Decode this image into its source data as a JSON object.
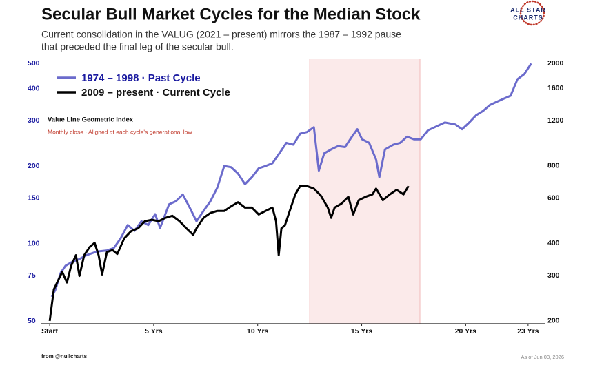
{
  "chart_data": {
    "type": "line",
    "title": "Secular Bull Market Cycles for the Median Stock",
    "subtitle": [
      "Current consolidation in the VALUG (2021 – present) mirrors the 1987 – 1992 pause",
      "that preceded the final leg of the secular bull."
    ],
    "annotation": "Value Line Geometric Index",
    "annotation_sub": "Monthly close  ·  Aligned at each cycle's generational low",
    "logo": [
      "ALL STAR",
      "CHARTS"
    ],
    "source": "from  @nullcharts",
    "date_note": "As of Jun 03, 2026",
    "log_scale": true,
    "legend": "upper left",
    "highlight_range": [
      12.5,
      17.8
    ],
    "highlight_color": "#fbeaea",
    "xlim": [
      -0.4,
      23.8
    ],
    "xticks": [
      {
        "value": 0,
        "label": "Start"
      },
      {
        "value": 5,
        "label": "5 Yrs"
      },
      {
        "value": 10,
        "label": "10 Yrs"
      },
      {
        "value": 15,
        "label": "15 Yrs"
      },
      {
        "value": 20,
        "label": "20 Yrs"
      },
      {
        "value": 23,
        "label": "23 Yrs"
      }
    ],
    "ylim": [
      48.8,
      523
    ],
    "yticks": [
      50,
      75,
      100,
      150,
      200,
      300,
      400,
      500
    ],
    "y2lim": [
      195,
      2090
    ],
    "y2ticks": [
      200,
      300,
      400,
      600,
      800,
      1200,
      1600,
      2000
    ],
    "series": [
      {
        "name": "1974 – 1998  ·  Past Cycle",
        "color": "#6b6bcc",
        "axis": "y",
        "x": [
          0.1,
          0.27,
          0.53,
          0.76,
          1.1,
          1.43,
          1.76,
          2.26,
          2.75,
          3.08,
          3.42,
          3.75,
          4.08,
          4.41,
          4.74,
          5.07,
          5.31,
          5.74,
          6.07,
          6.4,
          6.73,
          7.06,
          7.4,
          7.73,
          8.06,
          8.39,
          8.72,
          9.05,
          9.39,
          9.72,
          10.05,
          10.38,
          10.71,
          11.04,
          11.38,
          11.71,
          12.04,
          12.37,
          12.7,
          12.94,
          13.2,
          13.53,
          13.86,
          14.2,
          14.53,
          14.79,
          15.02,
          15.36,
          15.69,
          15.85,
          16.12,
          16.52,
          16.85,
          17.18,
          17.51,
          17.84,
          18.18,
          18.51,
          19.0,
          19.5,
          19.83,
          20.17,
          20.5,
          20.83,
          21.16,
          21.49,
          21.82,
          22.16,
          22.49,
          22.82,
          23.15
        ],
        "values": [
          62,
          66,
          77,
          82,
          85,
          87,
          90,
          93,
          94,
          96,
          105,
          118,
          112,
          122,
          118,
          130,
          115,
          142,
          146,
          155,
          138,
          122,
          134,
          146,
          165,
          200,
          198,
          187,
          170,
          181,
          196,
          200,
          205,
          224,
          246,
          242,
          267,
          271,
          283,
          192,
          224,
          232,
          239,
          237,
          260,
          278,
          254,
          246,
          212,
          181,
          232,
          242,
          246,
          260,
          254,
          254,
          275,
          283,
          295,
          290,
          278,
          295,
          315,
          327,
          345,
          355,
          365,
          375,
          435,
          455,
          500
        ]
      },
      {
        "name": "2009 – present  ·  Current Cycle",
        "color": "#000000",
        "axis": "y2",
        "x": [
          0,
          0.2,
          0.43,
          0.6,
          0.83,
          1.03,
          1.26,
          1.43,
          1.66,
          1.92,
          2.16,
          2.35,
          2.52,
          2.75,
          3.02,
          3.25,
          3.58,
          3.91,
          4.25,
          4.58,
          4.91,
          5.24,
          5.57,
          5.9,
          6.24,
          6.57,
          6.9,
          7.06,
          7.4,
          7.73,
          8.06,
          8.39,
          8.72,
          9.05,
          9.39,
          9.72,
          10.05,
          10.38,
          10.71,
          10.88,
          11.01,
          11.14,
          11.31,
          11.54,
          11.81,
          12.04,
          12.37,
          12.7,
          13.03,
          13.37,
          13.53,
          13.7,
          14.03,
          14.36,
          14.59,
          14.86,
          15.19,
          15.52,
          15.69,
          16.02,
          16.35,
          16.68,
          17.01,
          17.25
        ],
        "values": [
          200,
          265,
          290,
          310,
          282,
          327,
          360,
          299,
          360,
          387,
          402,
          360,
          303,
          370,
          377,
          364,
          418,
          446,
          458,
          488,
          494,
          488,
          503,
          512,
          488,
          458,
          432,
          458,
          503,
          525,
          535,
          535,
          557,
          578,
          551,
          551,
          518,
          535,
          551,
          488,
          360,
          458,
          470,
          535,
          620,
          668,
          668,
          653,
          614,
          551,
          503,
          551,
          571,
          607,
          518,
          589,
          607,
          620,
          653,
          589,
          620,
          646,
          620,
          668
        ]
      }
    ]
  }
}
